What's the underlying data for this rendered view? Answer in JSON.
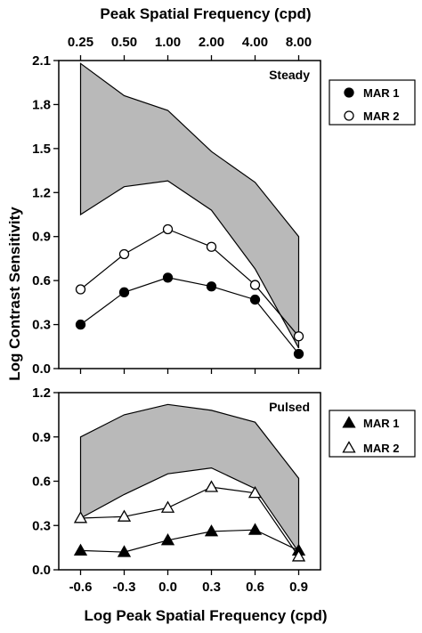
{
  "chart_data": {
    "type": "line",
    "top_axis_title": "Peak Spatial Frequency (cpd)",
    "top_ticks": [
      "0.25",
      "0.50",
      "1.00",
      "2.00",
      "4.00",
      "8.00"
    ],
    "xlabel": "Log Peak Spatial Frequency (cpd)",
    "ylabel": "Log Contrast Sensitivity",
    "x_ticks": [
      "-0.6",
      "-0.3",
      "0.0",
      "0.3",
      "0.6",
      "0.9"
    ],
    "x": [
      -0.6,
      -0.3,
      0.0,
      0.3,
      0.6,
      0.9
    ],
    "xlim": [
      -0.75,
      1.05
    ],
    "panels": [
      {
        "label": "Steady",
        "ylim": [
          0,
          2.1
        ],
        "y_ticks": [
          "0.0",
          "0.3",
          "0.6",
          "0.9",
          "1.2",
          "1.5",
          "1.8",
          "2.1"
        ],
        "band_upper": [
          2.08,
          1.86,
          1.76,
          1.48,
          1.27,
          0.9
        ],
        "band_lower": [
          1.05,
          1.24,
          1.28,
          1.08,
          0.68,
          0.14
        ],
        "series": [
          {
            "name": "MAR 1",
            "marker": "filled-circle",
            "values": [
              0.3,
              0.52,
              0.62,
              0.56,
              0.47,
              0.1
            ]
          },
          {
            "name": "MAR 2",
            "marker": "open-circle",
            "values": [
              0.54,
              0.78,
              0.95,
              0.83,
              0.57,
              0.22
            ]
          }
        ]
      },
      {
        "label": "Pulsed",
        "ylim": [
          0,
          1.2
        ],
        "y_ticks": [
          "0.0",
          "0.3",
          "0.6",
          "0.9",
          "1.2"
        ],
        "band_upper": [
          0.9,
          1.05,
          1.12,
          1.08,
          1.0,
          0.62
        ],
        "band_lower": [
          0.35,
          0.51,
          0.65,
          0.69,
          0.55,
          0.12
        ],
        "series": [
          {
            "name": "MAR 1",
            "marker": "filled-triangle",
            "values": [
              0.13,
              0.12,
              0.2,
              0.26,
              0.27,
              0.13
            ]
          },
          {
            "name": "MAR 2",
            "marker": "open-triangle",
            "values": [
              0.35,
              0.36,
              0.42,
              0.56,
              0.52,
              0.09
            ]
          }
        ]
      }
    ],
    "colors": {
      "band_fill": "#b9b9b9",
      "line": "#000000",
      "open_fill": "#ffffff"
    }
  }
}
